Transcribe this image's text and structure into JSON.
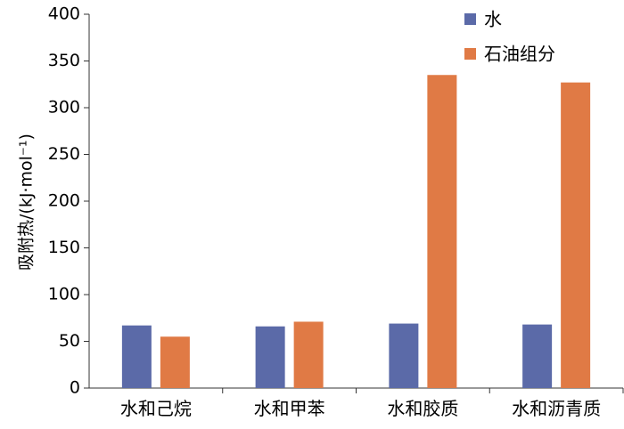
{
  "chart_data": {
    "type": "bar",
    "title": "",
    "xlabel": "",
    "ylabel": "吸附热/(kJ·mol⁻¹)",
    "ylim": [
      0,
      400
    ],
    "yticks": [
      0,
      50,
      100,
      150,
      200,
      250,
      300,
      350,
      400
    ],
    "categories": [
      "水和己烷",
      "水和甲苯",
      "水和胶质",
      "水和沥青质"
    ],
    "series": [
      {
        "name": "水",
        "color": "#5b6aa8",
        "values": [
          67,
          66,
          69,
          68
        ]
      },
      {
        "name": "石油组分",
        "color": "#e07a45",
        "values": [
          55,
          71,
          335,
          327
        ]
      }
    ],
    "legend_position": "top-right",
    "grid": false
  }
}
